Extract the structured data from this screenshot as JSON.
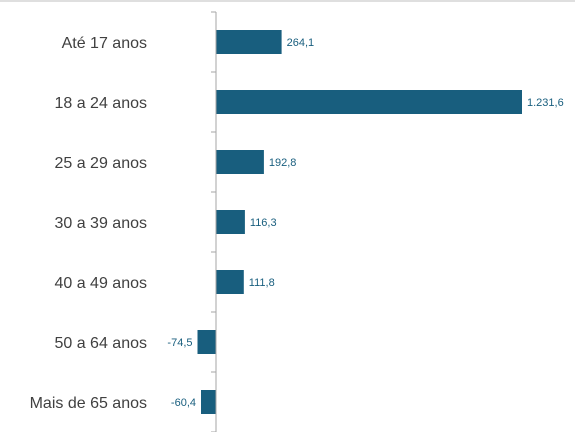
{
  "chart_data": {
    "type": "bar",
    "orientation": "horizontal",
    "categories": [
      "Até 17 anos",
      "18 a 24 anos",
      "25 a 29 anos",
      "30 a 39 anos",
      "40 a 49 anos",
      "50 a 64 anos",
      "Mais de 65 anos"
    ],
    "values": [
      264.1,
      1231.6,
      192.8,
      116.3,
      111.8,
      -74.5,
      -60.4
    ],
    "value_labels": [
      "264,1",
      "1.231,6",
      "192,8",
      "116,3",
      "111,8",
      "-74,5",
      "-60,4"
    ],
    "title": "",
    "xlabel": "",
    "ylabel": "",
    "xlim": [
      -90,
      1240
    ],
    "grid": false,
    "legend": "none",
    "colors": {
      "bar": "#185E7E",
      "value_label": "#185E7E",
      "category_label": "#404040",
      "axis": "#A6A6A6",
      "top_rule": "#BFBFBF"
    }
  }
}
